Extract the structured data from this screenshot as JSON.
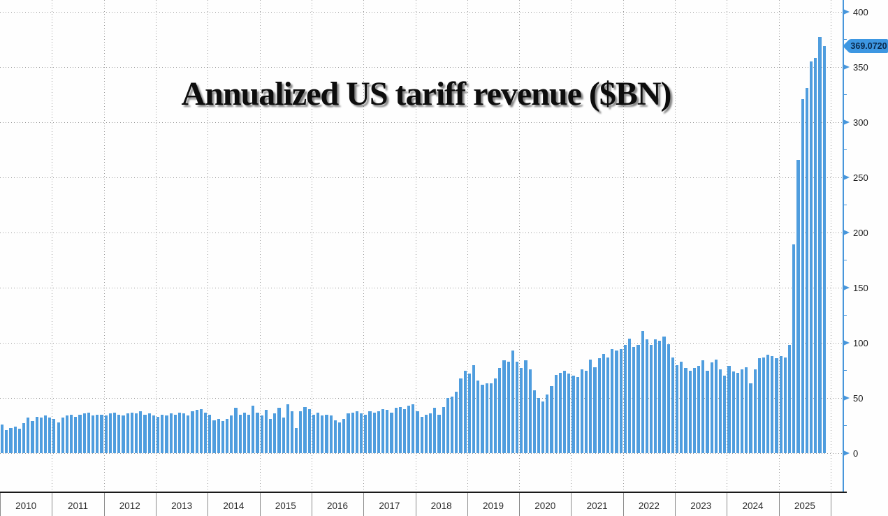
{
  "title": {
    "text": "Annualized US tariff revenue ($BN)"
  },
  "last_value_tag": {
    "label": "369.0720",
    "value": 369.072
  },
  "colors": {
    "bar": "#4f9dde",
    "axis_line": "#4796db",
    "grid_dots": "#9a9a9a",
    "tag_background": "#3d97e2",
    "tag_text": "#0a2a4d",
    "tick_label": "#1c1c1c",
    "year_label": "#2a2a2a",
    "bottom_line": "#1a1a1a"
  },
  "y_axis": {
    "side": "right",
    "major_tick_labels": [
      "0",
      "50",
      "100",
      "150",
      "200",
      "250",
      "300",
      "350",
      "400"
    ],
    "major_tick_values": [
      0,
      50,
      100,
      150,
      200,
      250,
      300,
      350,
      400
    ],
    "minor_tick_interval": 25,
    "range": [
      0,
      410
    ]
  },
  "x_axis": {
    "years": [
      "2010",
      "2011",
      "2012",
      "2013",
      "2014",
      "2015",
      "2016",
      "2017",
      "2018",
      "2019",
      "2020",
      "2021",
      "2022",
      "2023",
      "2024",
      "2025"
    ]
  },
  "chart_data": {
    "type": "bar",
    "title": "Annualized US tariff revenue ($BN)",
    "ylabel": "Annualized US tariff revenue ($BN)",
    "xlabel": "",
    "x_unit": "month",
    "ylim": [
      0,
      410
    ],
    "grid": "dotted, horizontal every 50 and vertical at year boundaries",
    "legend": "none",
    "categories_years": [
      "2010",
      "2011",
      "2012",
      "2013",
      "2014",
      "2015",
      "2016",
      "2017",
      "2018",
      "2019",
      "2020",
      "2021",
      "2022",
      "2023",
      "2024",
      "2025"
    ],
    "values_by_year": {
      "2010": [
        26,
        21,
        23,
        24,
        22,
        27,
        32,
        29,
        33,
        32,
        34,
        32
      ],
      "2011": [
        31,
        28,
        32,
        34,
        35,
        33,
        35,
        36,
        37,
        34,
        35,
        35
      ],
      "2012": [
        34,
        36,
        37,
        35,
        34,
        36,
        37,
        36,
        38,
        35,
        36,
        34
      ],
      "2013": [
        33,
        35,
        34,
        36,
        35,
        37,
        36,
        34,
        38,
        39,
        40,
        37
      ],
      "2014": [
        35,
        30,
        31,
        29,
        31,
        34,
        41,
        35,
        37,
        35,
        43,
        37
      ],
      "2015": [
        34,
        39,
        31,
        36,
        41,
        32,
        44,
        38,
        23,
        38,
        42,
        40
      ],
      "2016": [
        35,
        37,
        34,
        35,
        34,
        30,
        28,
        31,
        36,
        37,
        38,
        36
      ],
      "2017": [
        35,
        38,
        37,
        38,
        40,
        39,
        37,
        41,
        42,
        40,
        43,
        44
      ],
      "2018": [
        38,
        33,
        35,
        36,
        41,
        35,
        42,
        50,
        51,
        56,
        68,
        75
      ],
      "2019": [
        72,
        80,
        66,
        62,
        63,
        63,
        68,
        77,
        84,
        83,
        93,
        83
      ],
      "2020": [
        77,
        84,
        76,
        57,
        50,
        47,
        53,
        61,
        71,
        73,
        75,
        72
      ],
      "2021": [
        70,
        69,
        76,
        75,
        85,
        78,
        86,
        90,
        87,
        94,
        93,
        94
      ],
      "2022": [
        98,
        104,
        96,
        98,
        111,
        103,
        98,
        103,
        102,
        106,
        99,
        87
      ],
      "2023": [
        80,
        83,
        77,
        75,
        77,
        79,
        84,
        75,
        82,
        85,
        76,
        70
      ],
      "2024": [
        79,
        74,
        73,
        76,
        78,
        63,
        76,
        86,
        87,
        89,
        88,
        86
      ],
      "2025": [
        88,
        87,
        98,
        189,
        266,
        321,
        331,
        355,
        358,
        377,
        369.072
      ]
    },
    "last_point": {
      "label": "369.0720",
      "value": 369.072
    }
  }
}
